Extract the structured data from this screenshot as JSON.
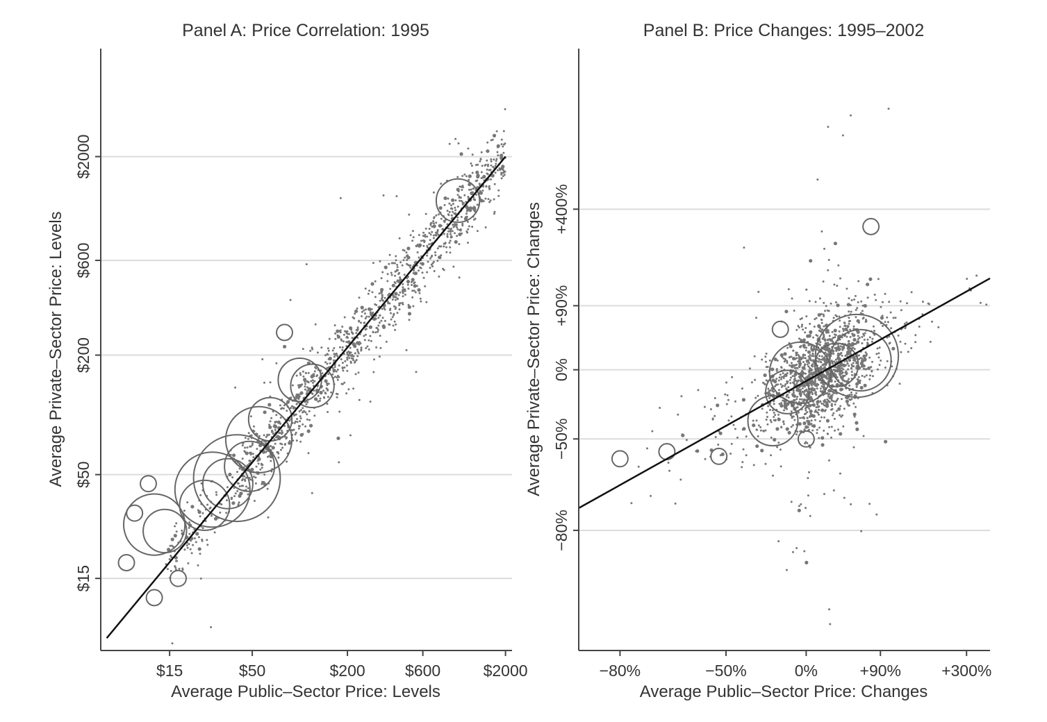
{
  "chart_data": [
    {
      "type": "scatter",
      "title": "Panel A: Price Correlation: 1995",
      "xlabel": "Average Public–Sector Price: Levels",
      "ylabel": "Average Private–Sector Price: Levels",
      "x_scale": "log",
      "y_scale": "log",
      "xlim": [
        5.5,
        2200
      ],
      "ylim": [
        6.5,
        7000
      ],
      "x_ticks": [
        15,
        50,
        200,
        600,
        2000
      ],
      "x_tick_labels": [
        "$15",
        "$50",
        "$200",
        "$600",
        "$2000"
      ],
      "y_ticks": [
        15,
        50,
        200,
        600,
        2000
      ],
      "y_tick_labels": [
        "$15",
        "$50",
        "$200",
        "$600",
        "$2000"
      ],
      "grid": "horizontal",
      "legend": "none",
      "fit_line": {
        "x": [
          6,
          2000
        ],
        "y": [
          7.5,
          2000
        ]
      },
      "bubbles": [
        {
          "x": 40,
          "y": 48,
          "size": 12
        },
        {
          "x": 28,
          "y": 42,
          "size": 9
        },
        {
          "x": 55,
          "y": 75,
          "size": 7
        },
        {
          "x": 12,
          "y": 28,
          "size": 6
        },
        {
          "x": 35,
          "y": 45,
          "size": 4
        },
        {
          "x": 25,
          "y": 35,
          "size": 4
        },
        {
          "x": 48,
          "y": 55,
          "size": 4
        },
        {
          "x": 65,
          "y": 95,
          "size": 3
        },
        {
          "x": 100,
          "y": 150,
          "size": 3
        },
        {
          "x": 120,
          "y": 140,
          "size": 3
        },
        {
          "x": 14,
          "y": 26,
          "size": 3
        },
        {
          "x": 8,
          "y": 18,
          "size": 2
        },
        {
          "x": 12,
          "y": 12,
          "size": 2
        },
        {
          "x": 17,
          "y": 15,
          "size": 2
        },
        {
          "x": 11,
          "y": 45,
          "size": 2
        },
        {
          "x": 9,
          "y": 32,
          "size": 2
        },
        {
          "x": 1000,
          "y": 1200,
          "size": 3
        },
        {
          "x": 80,
          "y": 260,
          "size": 2
        }
      ],
      "n_small_points": 1400
    },
    {
      "type": "scatter",
      "title": "Panel B: Price Changes: 1995–2002",
      "xlabel": "Average Public–Sector Price: Changes",
      "ylabel": "Average Private–Sector Price: Changes",
      "x_scale": "log of (1 + change)",
      "y_scale": "log of (1 + change)",
      "xlim": [
        "-86%",
        "+390%"
      ],
      "ylim": [
        "-94%",
        "+2400%"
      ],
      "x_ticks": [
        "-80%",
        "-50%",
        "0%",
        "+90%",
        "+300%"
      ],
      "x_tick_labels": [
        "−80%",
        "−50%",
        "0%",
        "+90%",
        "+300%"
      ],
      "y_ticks": [
        "-80%",
        "-50%",
        "0%",
        "+90%",
        "+400%"
      ],
      "y_tick_labels": [
        "−80%",
        "−50%",
        "0%",
        "+90%",
        "+400%"
      ],
      "grid": "horizontal",
      "legend": "none",
      "fit_line": {
        "x": [
          "-86%",
          "+390%"
        ],
        "y": [
          "-75%",
          "+150%"
        ]
      },
      "bubbles": [
        {
          "x": "+55%",
          "y": "+15%",
          "size": 11
        },
        {
          "x": "+60%",
          "y": "+10%",
          "size": 6
        },
        {
          "x": "-5%",
          "y": "-3%",
          "size": 6
        },
        {
          "x": "-25%",
          "y": "-40%",
          "size": 4
        },
        {
          "x": "-15%",
          "y": "-20%",
          "size": 3
        },
        {
          "x": "+30%",
          "y": "+5%",
          "size": 3
        },
        {
          "x": "-80%",
          "y": "-59%",
          "size": 2
        },
        {
          "x": "-70%",
          "y": "-56%",
          "size": 2
        },
        {
          "x": "-53%",
          "y": "-58%",
          "size": 2
        },
        {
          "x": "+75%",
          "y": "+320%",
          "size": 2
        },
        {
          "x": "0%",
          "y": "-50%",
          "size": 2
        },
        {
          "x": "-20%",
          "y": "+50%",
          "size": 2
        }
      ],
      "n_small_points": 1600
    }
  ]
}
